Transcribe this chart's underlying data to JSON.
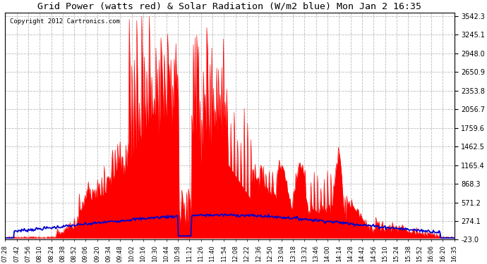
{
  "title": "Grid Power (watts red) & Solar Radiation (W/m2 blue) Mon Jan 2 16:35",
  "copyright": "Copyright 2012 Cartronics.com",
  "background_color": "#ffffff",
  "plot_bg_color": "#ffffff",
  "grid_color": "#aaaaaa",
  "red_color": "#ff0000",
  "blue_color": "#0000cc",
  "ymin": -23.0,
  "ymax": 3542.3,
  "yticks": [
    -23.0,
    274.1,
    571.2,
    868.3,
    1165.4,
    1462.5,
    1759.6,
    2056.7,
    2353.8,
    2650.9,
    2948.0,
    3245.1,
    3542.3
  ],
  "x_labels": [
    "07:28",
    "07:42",
    "07:56",
    "08:10",
    "08:24",
    "08:38",
    "08:52",
    "09:06",
    "09:20",
    "09:34",
    "09:48",
    "10:02",
    "10:16",
    "10:30",
    "10:44",
    "10:58",
    "11:12",
    "11:26",
    "11:40",
    "11:54",
    "12:08",
    "12:22",
    "12:36",
    "12:50",
    "13:04",
    "13:18",
    "13:32",
    "13:46",
    "14:00",
    "14:14",
    "14:28",
    "14:42",
    "14:56",
    "15:10",
    "15:24",
    "15:38",
    "15:52",
    "16:06",
    "16:20",
    "16:35"
  ],
  "n_points": 540
}
